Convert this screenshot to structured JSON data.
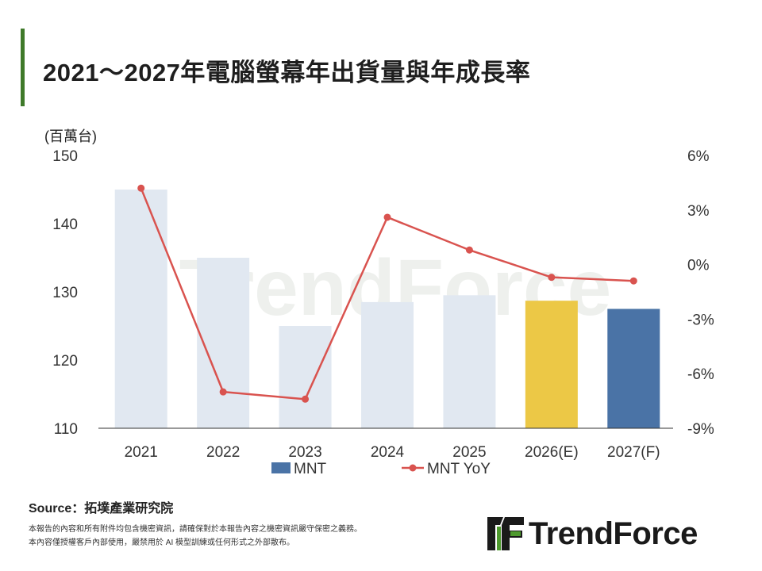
{
  "title": "2021～2027年電腦螢幕年出貨量與年成長率",
  "source": "Source：拓墣產業研究院",
  "disclaimer": [
    "本報告的內容和所有附件均包含機密資訊，請確保對於本報告內容之機密資訊嚴守保密之義務。",
    "本內容僅授權客戶內部使用，嚴禁用於 AI 模型訓練或任何形式之外部散布。"
  ],
  "logo": {
    "text": "TrendForce",
    "icon": "trendforce-logo-icon"
  },
  "watermark": "TrendForce",
  "colors": {
    "accent": "#3f7a2a",
    "bar_actual": "#e1e8f1",
    "bar_estimate": "#ecc846",
    "bar_forecast": "#4a73a6",
    "line": "#d9534f",
    "logo_green": "#4e9a2e"
  },
  "chart_data": {
    "type": "bar",
    "categories": [
      "2021",
      "2022",
      "2023",
      "2024",
      "2025",
      "2026(E)",
      "2027(F)"
    ],
    "series": [
      {
        "name": "MNT",
        "type": "bar",
        "axis": "left",
        "values": [
          145,
          135,
          125,
          128.5,
          129.5,
          128.7,
          127.5
        ]
      },
      {
        "name": "MNT YoY",
        "type": "line",
        "axis": "right",
        "values": [
          4.2,
          -7.0,
          -7.4,
          2.6,
          0.8,
          -0.7,
          -0.9
        ]
      }
    ],
    "ylabel": "(百萬台)",
    "ylim": [
      110,
      150
    ],
    "yticks": [
      "150",
      "140",
      "130",
      "120",
      "110"
    ],
    "y2lim": [
      -9,
      6
    ],
    "y2ticks": [
      "6%",
      "3%",
      "0%",
      "-3%",
      "-6%",
      "-9%"
    ],
    "legend": [
      "MNT",
      "MNT YoY"
    ],
    "legend_position": "bottom",
    "grid": false
  }
}
